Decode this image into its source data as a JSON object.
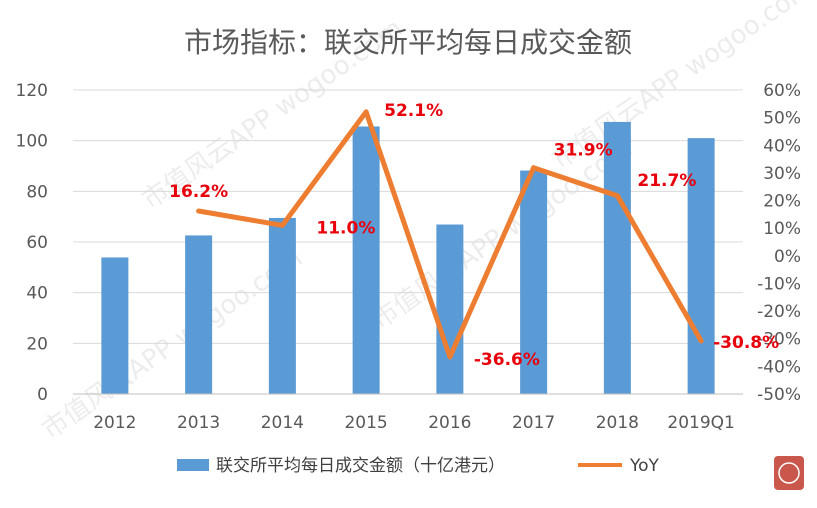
{
  "chart_data": {
    "type": "bar",
    "title": "市场指标：联交所平均每日成交金额",
    "categories": [
      "2012",
      "2013",
      "2014",
      "2015",
      "2016",
      "2017",
      "2018",
      "2019Q1"
    ],
    "series": [
      {
        "name": "联交所平均每日成交金额（十亿港元）",
        "type": "bar",
        "axis": "left",
        "color": "#5b9bd5",
        "values": [
          53.9,
          62.6,
          69.5,
          105.6,
          66.9,
          88.2,
          107.4,
          101.0
        ]
      },
      {
        "name": "YoY",
        "type": "line",
        "axis": "right",
        "color": "#ed7d31",
        "values": [
          null,
          16.2,
          11.0,
          52.1,
          -36.6,
          31.9,
          21.7,
          -30.8
        ],
        "labels": [
          "",
          "16.2%",
          "11.0%",
          "52.1%",
          "-36.6%",
          "31.9%",
          "21.7%",
          "-30.8%"
        ]
      }
    ],
    "ylim_left": [
      0,
      120
    ],
    "yticks_left": [
      "0",
      "20",
      "40",
      "60",
      "80",
      "100",
      "120"
    ],
    "ylim_right": [
      -50,
      60
    ],
    "yticks_right": [
      "-50%",
      "-40%",
      "-30%",
      "-20%",
      "-10%",
      "0%",
      "10%",
      "20%",
      "30%",
      "40%",
      "50%",
      "60%"
    ],
    "grid": true,
    "legend_position": "bottom",
    "label_color": "#e8000b"
  }
}
